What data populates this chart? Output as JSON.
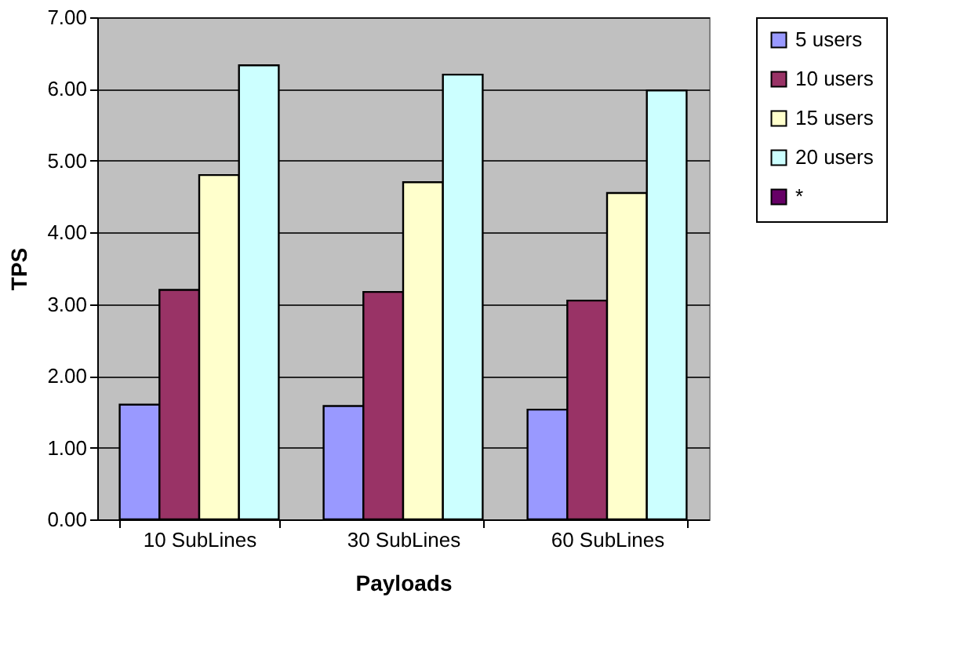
{
  "chart_data": {
    "type": "bar",
    "xlabel": "Payloads",
    "ylabel": "TPS",
    "categories": [
      "10 SubLines",
      "30 SubLines",
      "60 SubLines"
    ],
    "series": [
      {
        "name": "5 users",
        "color": "#9999ff",
        "values": [
          1.6,
          1.58,
          1.53
        ]
      },
      {
        "name": "10 users",
        "color": "#993366",
        "values": [
          3.2,
          3.17,
          3.05
        ]
      },
      {
        "name": "15 users",
        "color": "#ffffcc",
        "values": [
          4.8,
          4.7,
          4.55
        ]
      },
      {
        "name": "20 users",
        "color": "#ccffff",
        "values": [
          6.33,
          6.2,
          5.98
        ]
      },
      {
        "name": "*",
        "color": "#660066",
        "values": [
          null,
          null,
          null
        ]
      }
    ],
    "ylim": [
      0,
      7
    ],
    "yticks": [
      {
        "value": 0,
        "label": "0.00"
      },
      {
        "value": 1,
        "label": "1.00"
      },
      {
        "value": 2,
        "label": "2.00"
      },
      {
        "value": 3,
        "label": "3.00"
      },
      {
        "value": 4,
        "label": "4.00"
      },
      {
        "value": 5,
        "label": "5.00"
      },
      {
        "value": 6,
        "label": "6.00"
      },
      {
        "value": 7,
        "label": "7.00"
      }
    ],
    "grid": "y",
    "legend": "right"
  }
}
